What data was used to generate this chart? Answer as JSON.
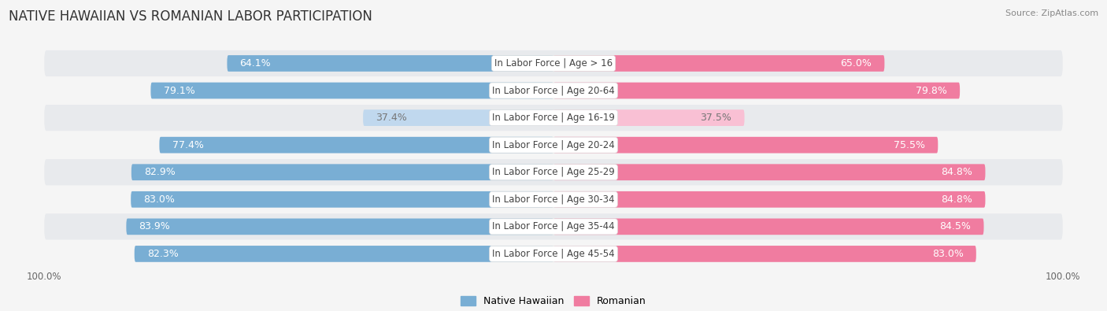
{
  "title": "NATIVE HAWAIIAN VS ROMANIAN LABOR PARTICIPATION",
  "source": "Source: ZipAtlas.com",
  "categories": [
    "In Labor Force | Age > 16",
    "In Labor Force | Age 20-64",
    "In Labor Force | Age 16-19",
    "In Labor Force | Age 20-24",
    "In Labor Force | Age 25-29",
    "In Labor Force | Age 30-34",
    "In Labor Force | Age 35-44",
    "In Labor Force | Age 45-54"
  ],
  "native_hawaiian": [
    64.1,
    79.1,
    37.4,
    77.4,
    82.9,
    83.0,
    83.9,
    82.3
  ],
  "romanian": [
    65.0,
    79.8,
    37.5,
    75.5,
    84.8,
    84.8,
    84.5,
    83.0
  ],
  "native_hawaiian_color": "#79aed4",
  "native_hawaiian_light_color": "#c0d8ee",
  "romanian_color": "#f07ca0",
  "romanian_light_color": "#f9c0d4",
  "row_bg_color": "#e8eaed",
  "row_bg_color_alt": "#f5f5f5",
  "bg_color": "#f5f5f5",
  "label_color_white": "#ffffff",
  "label_color_dark": "#777777",
  "max_value": 100.0,
  "bar_height": 0.6,
  "title_fontsize": 12,
  "label_fontsize": 9,
  "category_fontsize": 8.5
}
